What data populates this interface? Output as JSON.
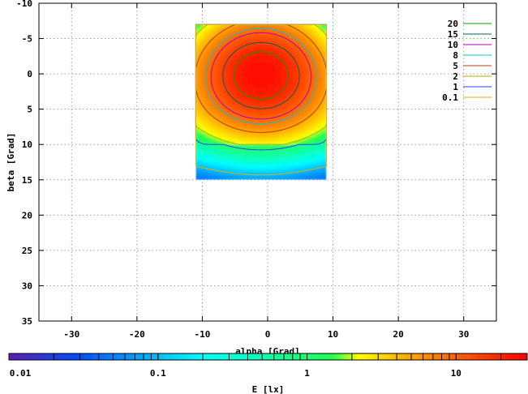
{
  "chart_data": {
    "type": "heatmap",
    "title": "",
    "xlabel": "alpha [Grad]",
    "ylabel": "beta [Grad]",
    "xlim": [
      -35,
      35
    ],
    "ylim": [
      -10,
      35
    ],
    "y_axis_inverted": true,
    "x_ticks": [
      -30,
      -20,
      -10,
      0,
      10,
      20,
      30
    ],
    "y_ticks": [
      -10,
      -5,
      0,
      5,
      10,
      15,
      20,
      25,
      30,
      35
    ],
    "grid": true,
    "data_extent": {
      "alpha": [
        -11,
        9
      ],
      "beta": [
        -7,
        15
      ]
    },
    "peak": {
      "alpha": -1,
      "beta": 0,
      "value": 25
    },
    "colorbar": {
      "label": "E [lx]",
      "scale": "log",
      "range": [
        0.01,
        30
      ],
      "tick_labels": [
        "0.01",
        "0.1",
        "1",
        "10"
      ],
      "colors": [
        "#5a1fb3",
        "#0050ff",
        "#00ffff",
        "#20ff50",
        "#ffff00",
        "#ff9000",
        "#ff0000"
      ]
    },
    "contour_levels": [
      {
        "name": "20",
        "value": 20,
        "color": "#00a000"
      },
      {
        "name": "15",
        "value": 15,
        "color": "#006060"
      },
      {
        "name": "10",
        "value": 10,
        "color": "#b000c0"
      },
      {
        "name": "8",
        "value": 8,
        "color": "#00c8d0"
      },
      {
        "name": "5",
        "value": 5,
        "color": "#b04010"
      },
      {
        "name": "2",
        "value": 2,
        "color": "#b0b000"
      },
      {
        "name": "1",
        "value": 1,
        "color": "#2040ff"
      },
      {
        "name": "0.1",
        "value": 0.1,
        "color": "#e0b000"
      }
    ],
    "legend_position": "top-right"
  }
}
